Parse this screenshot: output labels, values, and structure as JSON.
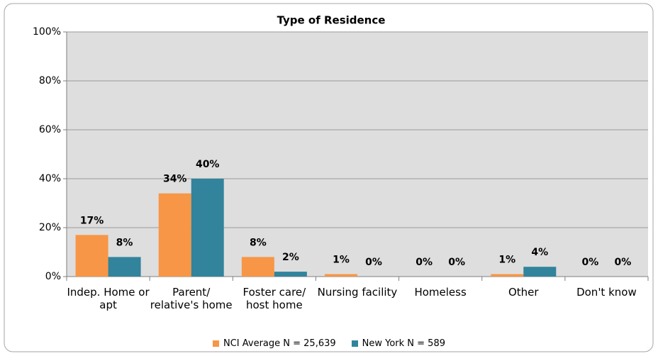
{
  "chart_data": {
    "type": "bar",
    "title": "Type of Residence",
    "categories": [
      "Indep. Home or apt",
      "Parent/ relative's home",
      "Foster care/ host home",
      "Nursing facility",
      "Homeless",
      "Other",
      "Don't know"
    ],
    "series": [
      {
        "name": "NCI Average N = 25,639",
        "color": "#f79646",
        "values": [
          17,
          34,
          8,
          1,
          0,
          1,
          0
        ],
        "value_labels": [
          "17%",
          "34%",
          "8%",
          "1%",
          "0%",
          "1%",
          "0%"
        ]
      },
      {
        "name": "New York N = 589",
        "color": "#31849b",
        "values": [
          8,
          40,
          2,
          0,
          0,
          4,
          0
        ],
        "value_labels": [
          "8%",
          "40%",
          "2%",
          "0%",
          "0%",
          "4%",
          "0%"
        ]
      }
    ],
    "ylim": [
      0,
      100
    ],
    "yticks": [
      {
        "value": 0,
        "label": "0%"
      },
      {
        "value": 20,
        "label": "20%"
      },
      {
        "value": 40,
        "label": "40%"
      },
      {
        "value": 60,
        "label": "60%"
      },
      {
        "value": 80,
        "label": "80%"
      },
      {
        "value": 100,
        "label": "100%"
      }
    ],
    "grid": true,
    "legend": "bottom"
  }
}
